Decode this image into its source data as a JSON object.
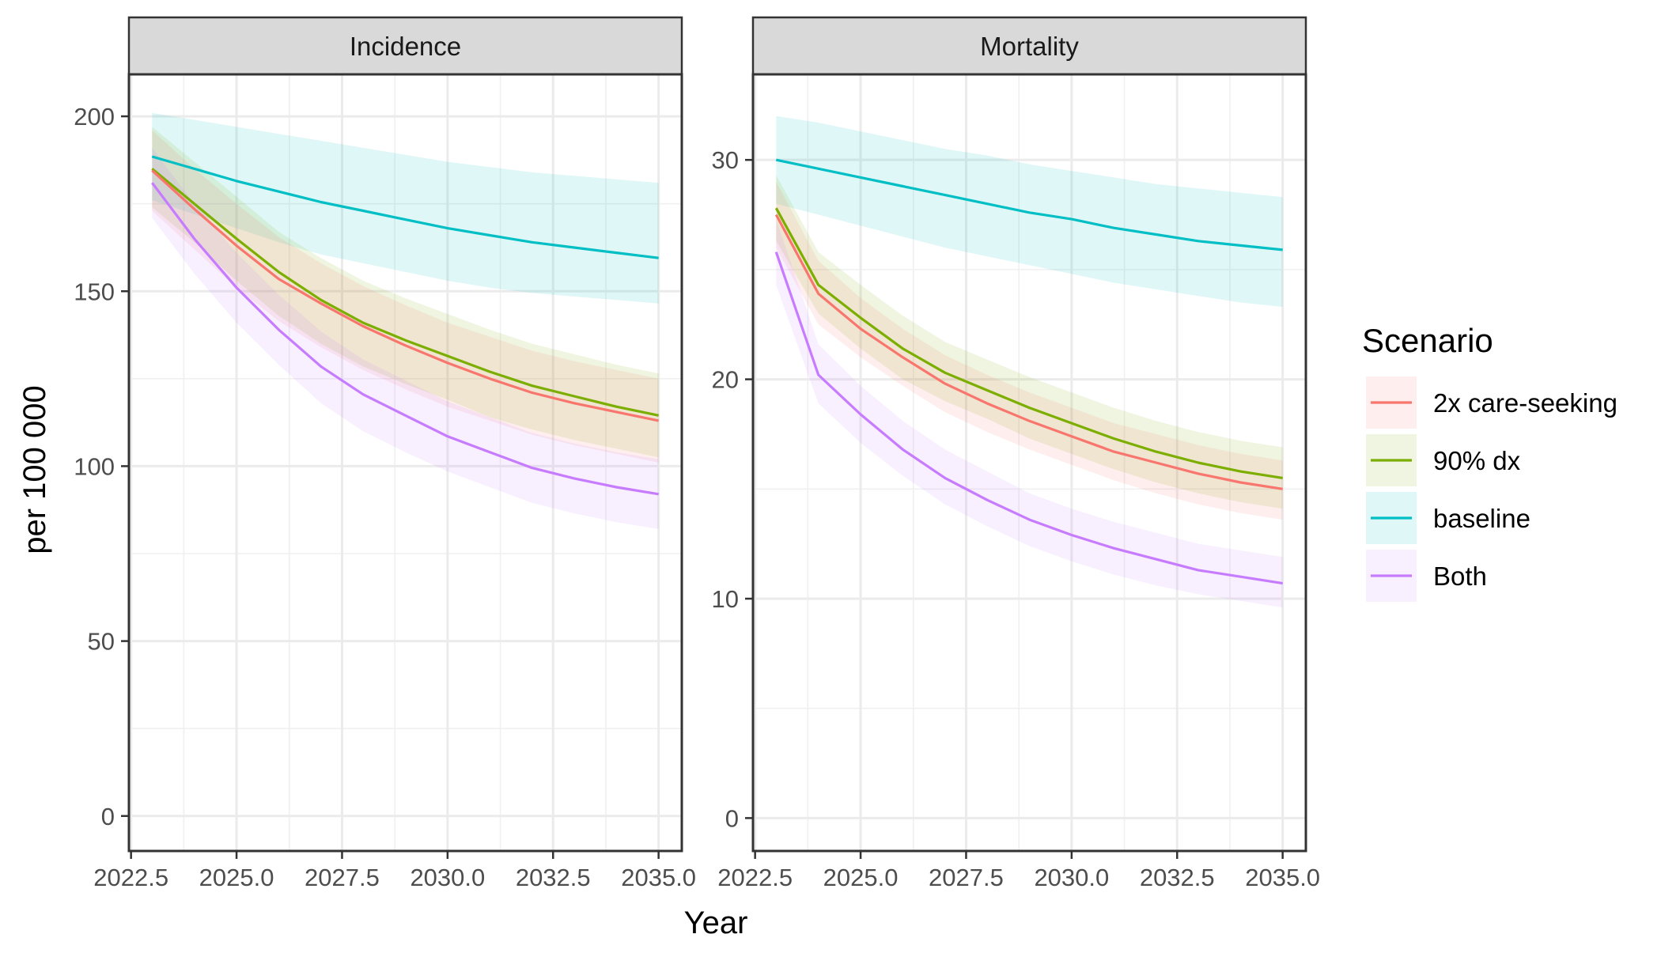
{
  "chart_data": {
    "type": "line",
    "xlabel": "Year",
    "ylabel": "per 100 000",
    "x_ticks": [
      "2022.5",
      "2025.0",
      "2027.5",
      "2030.0",
      "2032.5",
      "2035.0"
    ],
    "x_range": [
      2022.45,
      2035.55
    ],
    "legend": {
      "title": "Scenario",
      "position": "right",
      "entries": [
        "2x care-seeking",
        "90% dx",
        "baseline",
        "Both"
      ]
    },
    "colors": {
      "2x care-seeking": "#F8766D",
      "90% dx": "#7CAE00",
      "baseline": "#00BFC4",
      "Both": "#C77CFF"
    },
    "grid": true,
    "x": [
      2023,
      2024,
      2025,
      2026,
      2027,
      2028,
      2029,
      2030,
      2031,
      2032,
      2033,
      2034,
      2035
    ],
    "panels": [
      {
        "title": "Incidence",
        "ylim": [
          -10,
          212
        ],
        "y_ticks": [
          0,
          50,
          100,
          150,
          200
        ],
        "series": [
          {
            "name": "baseline",
            "values": [
              188.5,
              185,
              181.5,
              178.5,
              175.5,
              173,
              170.5,
              168,
              166,
              164,
              162.5,
              161,
              159.5
            ],
            "lower": [
              176,
              172,
              168,
              164,
              160.5,
              158,
              155.5,
              153,
              151,
              149.5,
              148.5,
              147.5,
              146.5
            ],
            "upper": [
              201,
              199,
              197,
              195,
              193,
              191,
              189,
              187,
              185.5,
              184,
              183,
              182,
              181
            ]
          },
          {
            "name": "90% dx",
            "values": [
              185,
              175,
              165,
              155.5,
              147.5,
              141,
              136,
              131.5,
              127,
              123,
              120,
              117,
              114.5
            ],
            "lower": [
              174,
              164,
              153,
              143,
              135,
              128.5,
              123.5,
              119,
              114,
              110.5,
              107.5,
              105,
              102.5
            ],
            "upper": [
              197,
              187,
              177,
              167,
              159.5,
              153,
              148,
              143.5,
              139,
              135,
              132,
              129,
              126.5
            ]
          },
          {
            "name": "2x care-seeking",
            "values": [
              184.5,
              173.5,
              163,
              153.5,
              146.5,
              140,
              134.5,
              129.5,
              125,
              121,
              118,
              115.5,
              113
            ],
            "lower": [
              173,
              162,
              151,
              141.5,
              134,
              127.5,
              122,
              117,
              113,
              109,
              106,
              103.5,
              101
            ],
            "upper": [
              196,
              185,
              175,
              165.5,
              158,
              151.5,
              146,
              141,
              137,
              133,
              130,
              127.5,
              125
            ]
          },
          {
            "name": "Both",
            "values": [
              181,
              165,
              151,
              139,
              128.5,
              120.5,
              114.5,
              108.5,
              104,
              99.5,
              96.5,
              94,
              92
            ],
            "lower": [
              171,
              155,
              141,
              129,
              118,
              110,
              104,
              98.5,
              94,
              89.5,
              86.5,
              84,
              82
            ],
            "upper": [
              191,
              175,
              161,
              149,
              138.5,
              130.5,
              124.5,
              118.5,
              114,
              109.5,
              106.5,
              104,
              102
            ]
          }
        ]
      },
      {
        "title": "Mortality",
        "ylim": [
          -1.5,
          33.9
        ],
        "y_ticks": [
          0,
          10,
          20,
          30
        ],
        "series": [
          {
            "name": "baseline",
            "values": [
              30,
              29.6,
              29.2,
              28.8,
              28.4,
              28,
              27.6,
              27.3,
              26.9,
              26.6,
              26.3,
              26.1,
              25.9
            ],
            "lower": [
              28,
              27.5,
              27,
              26.5,
              26,
              25.6,
              25.2,
              24.8,
              24.4,
              24.1,
              23.8,
              23.5,
              23.3
            ],
            "upper": [
              32,
              31.7,
              31.3,
              30.9,
              30.5,
              30.2,
              29.8,
              29.5,
              29.2,
              28.9,
              28.7,
              28.5,
              28.3
            ]
          },
          {
            "name": "90% dx",
            "values": [
              27.8,
              24.3,
              22.8,
              21.4,
              20.3,
              19.5,
              18.7,
              18,
              17.3,
              16.7,
              16.2,
              15.8,
              15.5
            ],
            "lower": [
              26.3,
              23,
              21.4,
              20,
              19,
              18.2,
              17.3,
              16.6,
              15.9,
              15.3,
              14.8,
              14.4,
              14.1
            ],
            "upper": [
              29.3,
              25.8,
              24.3,
              22.9,
              21.7,
              20.9,
              20.1,
              19.4,
              18.7,
              18.1,
              17.6,
              17.2,
              16.9
            ]
          },
          {
            "name": "2x care-seeking",
            "values": [
              27.5,
              23.9,
              22.3,
              21,
              19.8,
              18.9,
              18.1,
              17.4,
              16.7,
              16.2,
              15.7,
              15.3,
              15
            ],
            "lower": [
              26,
              22.5,
              21,
              19.7,
              18.5,
              17.6,
              16.8,
              16.1,
              15.4,
              14.8,
              14.3,
              13.9,
              13.6
            ],
            "upper": [
              29,
              25.4,
              23.7,
              22.3,
              21.1,
              20.2,
              19.4,
              18.7,
              18,
              17.5,
              17,
              16.6,
              16.3
            ]
          },
          {
            "name": "Both",
            "values": [
              25.8,
              20.2,
              18.4,
              16.8,
              15.5,
              14.5,
              13.6,
              12.9,
              12.3,
              11.8,
              11.3,
              11,
              10.7
            ],
            "lower": [
              24.3,
              18.9,
              17.1,
              15.6,
              14.3,
              13.3,
              12.4,
              11.7,
              11.1,
              10.6,
              10.2,
              9.9,
              9.6
            ],
            "upper": [
              27.3,
              21.6,
              19.7,
              18.1,
              16.8,
              15.8,
              14.8,
              14.1,
              13.5,
              13,
              12.5,
              12.2,
              11.9
            ]
          }
        ]
      }
    ]
  }
}
